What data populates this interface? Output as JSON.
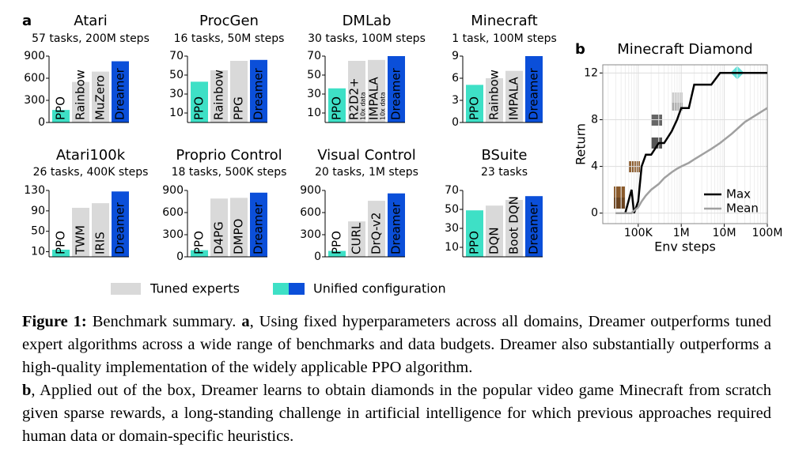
{
  "panel_labels": [
    "a",
    "b"
  ],
  "legend": [
    "Tuned experts",
    "Unified configuration"
  ],
  "chart_data": [
    {
      "type": "bar",
      "title": "Atari",
      "subtitle": "57 tasks, 200M steps",
      "categories": [
        "PPO",
        "Rainbow",
        "MuZero",
        "Dreamer"
      ],
      "values": [
        170,
        550,
        690,
        830
      ],
      "colors": [
        "#3ee0c6",
        "#d9d9d9",
        "#d9d9d9",
        "#0b4fd9"
      ],
      "ylim": [
        0,
        900
      ],
      "yticks": [
        0,
        300,
        600,
        900
      ]
    },
    {
      "type": "bar",
      "title": "ProcGen",
      "subtitle": "16 tasks, 50M steps",
      "categories": [
        "PPO",
        "Rainbow",
        "PPG",
        "Dreamer"
      ],
      "values": [
        43,
        55,
        65,
        66
      ],
      "colors": [
        "#3ee0c6",
        "#d9d9d9",
        "#d9d9d9",
        "#0b4fd9"
      ],
      "ylim": [
        0,
        70
      ],
      "yticks": [
        10,
        30,
        50,
        70
      ]
    },
    {
      "type": "bar",
      "title": "DMLab",
      "subtitle": "30 tasks, 100M steps",
      "categories": [
        "PPO",
        "R2D2+",
        "IMPALA",
        "Dreamer"
      ],
      "bar_notes": [
        null,
        "10x data",
        "10x data",
        null
      ],
      "values": [
        36,
        65,
        66,
        70
      ],
      "colors": [
        "#3ee0c6",
        "#d9d9d9",
        "#d9d9d9",
        "#0b4fd9"
      ],
      "ylim": [
        0,
        70
      ],
      "yticks": [
        10,
        30,
        50,
        70
      ]
    },
    {
      "type": "bar",
      "title": "Minecraft",
      "subtitle": "1 task, 100M steps",
      "categories": [
        "PPO",
        "Rainbow",
        "IMPALA",
        "Dreamer"
      ],
      "values": [
        5.1,
        6.0,
        7.0,
        9.0
      ],
      "colors": [
        "#3ee0c6",
        "#d9d9d9",
        "#d9d9d9",
        "#0b4fd9"
      ],
      "ylim": [
        0,
        9
      ],
      "yticks": [
        0,
        3,
        6,
        9
      ]
    },
    {
      "type": "bar",
      "title": "Atari100k",
      "subtitle": "26 tasks, 400K steps",
      "categories": [
        "PPO",
        "TWM",
        "IRIS",
        "Dreamer"
      ],
      "values": [
        14,
        96,
        105,
        128
      ],
      "colors": [
        "#3ee0c6",
        "#d9d9d9",
        "#d9d9d9",
        "#0b4fd9"
      ],
      "ylim": [
        0,
        130
      ],
      "yticks": [
        10,
        50,
        90,
        130
      ]
    },
    {
      "type": "bar",
      "title": "Proprio Control",
      "subtitle": "18 tasks, 500K steps",
      "categories": [
        "PPO",
        "D4PG",
        "DMPO",
        "Dreamer"
      ],
      "values": [
        90,
        790,
        800,
        870
      ],
      "colors": [
        "#3ee0c6",
        "#d9d9d9",
        "#d9d9d9",
        "#0b4fd9"
      ],
      "ylim": [
        0,
        900
      ],
      "yticks": [
        0,
        300,
        600,
        900
      ]
    },
    {
      "type": "bar",
      "title": "Visual Control",
      "subtitle": "20 tasks, 1M steps",
      "categories": [
        "PPO",
        "CURL",
        "DrQ-v2",
        "Dreamer"
      ],
      "values": [
        80,
        480,
        760,
        860
      ],
      "colors": [
        "#3ee0c6",
        "#d9d9d9",
        "#d9d9d9",
        "#0b4fd9"
      ],
      "ylim": [
        0,
        900
      ],
      "yticks": [
        0,
        300,
        600,
        900
      ]
    },
    {
      "type": "bar",
      "title": "BSuite",
      "subtitle": "23 tasks",
      "categories": [
        "PPO",
        "DQN",
        "Boot DQN",
        "Dreamer"
      ],
      "values": [
        49,
        54,
        60,
        64
      ],
      "colors": [
        "#3ee0c6",
        "#d9d9d9",
        "#d9d9d9",
        "#0b4fd9"
      ],
      "ylim": [
        0,
        70
      ],
      "yticks": [
        10,
        30,
        50,
        70
      ]
    },
    {
      "type": "line",
      "title": "Minecraft Diamond",
      "xlabel": "Env steps",
      "ylabel": "Return",
      "xscale": "log",
      "grid": true,
      "legend": "lower right",
      "x": [
        30000,
        50000,
        70000,
        80000,
        100000,
        120000,
        150000,
        200000,
        300000,
        400000,
        600000,
        800000,
        1000000,
        1500000,
        2000000,
        3000000,
        5000000,
        8000000,
        15000000,
        30000000,
        100000000
      ],
      "series": [
        {
          "name": "Max",
          "color": "#000000",
          "values": [
            0,
            0,
            2,
            0,
            1,
            4,
            5,
            5,
            6,
            6,
            7,
            8,
            9,
            9,
            11,
            11,
            11,
            12,
            12,
            12,
            12
          ]
        },
        {
          "name": "Mean",
          "color": "#a0a0a0",
          "values": [
            0,
            0,
            0,
            0.2,
            0.5,
            1,
            1.5,
            2,
            2.5,
            3,
            3.5,
            3.8,
            4,
            4.3,
            4.6,
            5,
            5.5,
            6,
            6.8,
            7.8,
            9
          ]
        }
      ],
      "xlim": [
        15000,
        100000000
      ],
      "xticks": [
        {
          "value": 100000,
          "label": "100K"
        },
        {
          "value": 1000000,
          "label": "1M"
        },
        {
          "value": 10000000,
          "label": "10M"
        },
        {
          "value": 100000000,
          "label": "100M"
        }
      ],
      "ylim": [
        -0.9,
        12.7
      ],
      "yticks": [
        0,
        4,
        8,
        12
      ]
    }
  ],
  "caption": {
    "label": "Figure 1:",
    "title": "Benchmark summary.",
    "parts": [
      {
        "label": "a",
        "text": ", Using fixed hyperparameters across all domains, Dreamer outperforms tuned expert algorithms across a wide range of benchmarks and data budgets. Dreamer also substantially outperforms a high-quality implementation of the widely applicable PPO algorithm."
      },
      {
        "label": "b",
        "text": ", Applied out of the box, Dreamer learns to obtain diamonds in the popular video game Minecraft from scratch given sparse rewards, a long-standing challenge in artificial intelligence for which previous approaches required human data or domain-specific heuristics."
      }
    ]
  }
}
